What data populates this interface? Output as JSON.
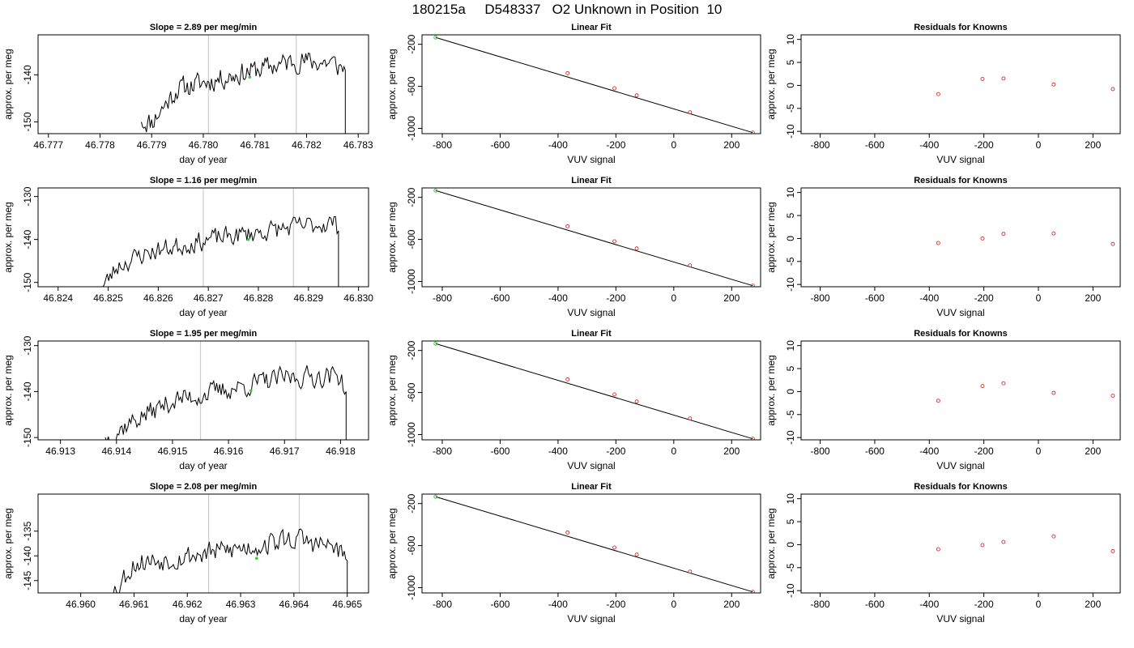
{
  "page": {
    "title": "180215a     D548337   O2 Unknown in Position  10"
  },
  "colors": {
    "trace": "#000000",
    "vline": "#cccccc",
    "known": "#cc3333",
    "reference": "#33cc33"
  },
  "chart_data": [
    {
      "type": "line",
      "title": "Slope =  2.89  per meg/min",
      "xlabel": "day of year",
      "ylabel": "approx. per meg",
      "xlim": [
        46.7768,
        46.7832
      ],
      "ylim": [
        -152.5,
        -131.5
      ],
      "xticks": [
        "46.777",
        "46.778",
        "46.779",
        "46.780",
        "46.781",
        "46.782",
        "46.783"
      ],
      "yticks": [
        "-140",
        "-150"
      ],
      "start_x": 46.7788,
      "end_x": 46.78275,
      "trend": [
        [
          46.779,
          -150
        ],
        [
          46.7795,
          -143
        ],
        [
          46.781,
          -139
        ],
        [
          46.7818,
          -137
        ],
        [
          46.7825,
          -137.5
        ],
        [
          46.78275,
          -139
        ]
      ],
      "vlines": [
        46.7801,
        46.7818
      ],
      "marker": [
        46.7809,
        -140.5
      ],
      "seed": 11
    },
    {
      "type": "scatter",
      "title": "Linear Fit",
      "xlabel": "VUV signal",
      "ylabel": "approx. per meg",
      "xlim": [
        -870,
        300
      ],
      "ylim": [
        -1050,
        -110
      ],
      "xticks": [
        "-800",
        "-600",
        "-400",
        "-200",
        "0",
        "200"
      ],
      "yticks": [
        "-200",
        "-600",
        "-1000"
      ],
      "points": [
        [
          -367,
          -475
        ],
        [
          -205,
          -618
        ],
        [
          -128,
          -686
        ],
        [
          56,
          -847
        ],
        [
          273,
          -1040
        ]
      ],
      "reference_point": [
        -823,
        -135
      ],
      "fit_line": [
        [
          -823,
          -135
        ],
        [
          273,
          -1040
        ]
      ]
    },
    {
      "type": "scatter",
      "title": "Residuals for Knowns",
      "xlabel": "VUV signal",
      "ylabel": "approx. per meg",
      "xlim": [
        -870,
        300
      ],
      "ylim": [
        -10.5,
        11
      ],
      "xticks": [
        "-800",
        "-600",
        "-400",
        "-200",
        "0",
        "200"
      ],
      "yticks": [
        "-10",
        "-5",
        "0",
        "5",
        "10"
      ],
      "points": [
        [
          -367,
          -1.9
        ],
        [
          -205,
          1.4
        ],
        [
          -128,
          1.5
        ],
        [
          56,
          0.2
        ],
        [
          273,
          -0.8
        ]
      ]
    },
    {
      "type": "line",
      "title": "Slope =  1.16  per meg/min",
      "xlabel": "day of year",
      "ylabel": "approx. per meg",
      "xlim": [
        46.8236,
        46.8302
      ],
      "ylim": [
        -151,
        -128
      ],
      "xticks": [
        "46.824",
        "46.825",
        "46.826",
        "46.827",
        "46.828",
        "46.829",
        "46.830"
      ],
      "yticks": [
        "-130",
        "-140",
        "-150"
      ],
      "start_x": 46.8248,
      "end_x": 46.8296,
      "trend": [
        [
          46.8249,
          -151
        ],
        [
          46.8252,
          -146
        ],
        [
          46.8258,
          -143
        ],
        [
          46.827,
          -140
        ],
        [
          46.8285,
          -137.5
        ],
        [
          46.8295,
          -136
        ],
        [
          46.8296,
          -138
        ]
      ],
      "vlines": [
        46.8269,
        46.8287
      ],
      "marker": [
        46.8278,
        -140
      ],
      "seed": 23
    },
    {
      "type": "scatter",
      "title": "Linear Fit",
      "xlabel": "VUV signal",
      "ylabel": "approx. per meg",
      "xlim": [
        -870,
        300
      ],
      "ylim": [
        -1050,
        -110
      ],
      "xticks": [
        "-800",
        "-600",
        "-400",
        "-200",
        "0",
        "200"
      ],
      "yticks": [
        "-200",
        "-600",
        "-1000"
      ],
      "points": [
        [
          -367,
          -475
        ],
        [
          -205,
          -618
        ],
        [
          -128,
          -686
        ],
        [
          56,
          -847
        ],
        [
          273,
          -1040
        ]
      ],
      "reference_point": [
        -823,
        -135
      ],
      "fit_line": [
        [
          -823,
          -135
        ],
        [
          273,
          -1040
        ]
      ]
    },
    {
      "type": "scatter",
      "title": "Residuals for Knowns",
      "xlabel": "VUV signal",
      "ylabel": "approx. per meg",
      "xlim": [
        -870,
        300
      ],
      "ylim": [
        -10.5,
        11
      ],
      "xticks": [
        "-800",
        "-600",
        "-400",
        "-200",
        "0",
        "200"
      ],
      "yticks": [
        "-10",
        "-5",
        "0",
        "5",
        "10"
      ],
      "points": [
        [
          -367,
          -1.0
        ],
        [
          -205,
          0.0
        ],
        [
          -128,
          1.0
        ],
        [
          56,
          1.1
        ],
        [
          273,
          -1.2
        ]
      ]
    },
    {
      "type": "line",
      "title": "Slope =  1.95  per meg/min",
      "xlabel": "day of year",
      "ylabel": "approx. per meg",
      "xlim": [
        46.9126,
        46.9185
      ],
      "ylim": [
        -150.5,
        -129
      ],
      "xticks": [
        "46.913",
        "46.914",
        "46.915",
        "46.916",
        "46.917",
        "46.918"
      ],
      "yticks": [
        "-130",
        "-140",
        "-150"
      ],
      "start_x": 46.9138,
      "end_x": 46.9181,
      "trend": [
        [
          46.9139,
          -150
        ],
        [
          46.9142,
          -147
        ],
        [
          46.915,
          -142
        ],
        [
          46.916,
          -139.5
        ],
        [
          46.917,
          -137
        ],
        [
          46.918,
          -136.5
        ],
        [
          46.9181,
          -140
        ]
      ],
      "vlines": [
        46.9155,
        46.9172
      ],
      "marker": [
        46.9164,
        -139.8
      ],
      "seed": 37
    },
    {
      "type": "scatter",
      "title": "Linear Fit",
      "xlabel": "VUV signal",
      "ylabel": "approx. per meg",
      "xlim": [
        -870,
        300
      ],
      "ylim": [
        -1050,
        -110
      ],
      "xticks": [
        "-800",
        "-600",
        "-400",
        "-200",
        "0",
        "200"
      ],
      "yticks": [
        "-200",
        "-600",
        "-1000"
      ],
      "points": [
        [
          -367,
          -475
        ],
        [
          -205,
          -618
        ],
        [
          -128,
          -686
        ],
        [
          56,
          -847
        ],
        [
          273,
          -1040
        ]
      ],
      "reference_point": [
        -823,
        -135
      ],
      "fit_line": [
        [
          -823,
          -135
        ],
        [
          273,
          -1040
        ]
      ]
    },
    {
      "type": "scatter",
      "title": "Residuals for Knowns",
      "xlabel": "VUV signal",
      "ylabel": "approx. per meg",
      "xlim": [
        -870,
        300
      ],
      "ylim": [
        -10.5,
        11
      ],
      "xticks": [
        "-800",
        "-600",
        "-400",
        "-200",
        "0",
        "200"
      ],
      "yticks": [
        "-10",
        "-5",
        "0",
        "5",
        "10"
      ],
      "points": [
        [
          -367,
          -2.0
        ],
        [
          -205,
          1.2
        ],
        [
          -128,
          1.8
        ],
        [
          56,
          -0.3
        ],
        [
          273,
          -0.9
        ]
      ]
    },
    {
      "type": "line",
      "title": "Slope =  2.08  per meg/min",
      "xlabel": "day of year",
      "ylabel": "approx. per meg",
      "xlim": [
        46.9592,
        46.9654
      ],
      "ylim": [
        -147.5,
        -127.5
      ],
      "xticks": [
        "46.960",
        "46.961",
        "46.962",
        "46.963",
        "46.964",
        "46.965"
      ],
      "yticks": [
        "-135",
        "-140",
        "-145"
      ],
      "start_x": 46.9605,
      "end_x": 46.965,
      "trend": [
        [
          46.9606,
          -147.5
        ],
        [
          46.961,
          -141.5
        ],
        [
          46.962,
          -140
        ],
        [
          46.963,
          -138.5
        ],
        [
          46.964,
          -136.5
        ],
        [
          46.9648,
          -138.5
        ],
        [
          46.965,
          -141
        ]
      ],
      "vlines": [
        46.9624,
        46.9641
      ],
      "marker": [
        46.9633,
        -140.5
      ],
      "seed": 53
    },
    {
      "type": "scatter",
      "title": "Linear Fit",
      "xlabel": "VUV signal",
      "ylabel": "approx. per meg",
      "xlim": [
        -870,
        300
      ],
      "ylim": [
        -1050,
        -110
      ],
      "xticks": [
        "-800",
        "-600",
        "-400",
        "-200",
        "0",
        "200"
      ],
      "yticks": [
        "-200",
        "-600",
        "-1000"
      ],
      "points": [
        [
          -367,
          -475
        ],
        [
          -205,
          -618
        ],
        [
          -128,
          -686
        ],
        [
          56,
          -847
        ],
        [
          273,
          -1040
        ]
      ],
      "reference_point": [
        -823,
        -135
      ],
      "fit_line": [
        [
          -823,
          -135
        ],
        [
          273,
          -1040
        ]
      ]
    },
    {
      "type": "scatter",
      "title": "Residuals for Knowns",
      "xlabel": "VUV signal",
      "ylabel": "approx. per meg",
      "xlim": [
        -870,
        300
      ],
      "ylim": [
        -10.5,
        11
      ],
      "xticks": [
        "-800",
        "-600",
        "-400",
        "-200",
        "0",
        "200"
      ],
      "yticks": [
        "-10",
        "-5",
        "0",
        "5",
        "10"
      ],
      "points": [
        [
          -367,
          -1.0
        ],
        [
          -205,
          -0.1
        ],
        [
          -128,
          0.6
        ],
        [
          56,
          1.8
        ],
        [
          273,
          -1.4
        ]
      ]
    }
  ]
}
